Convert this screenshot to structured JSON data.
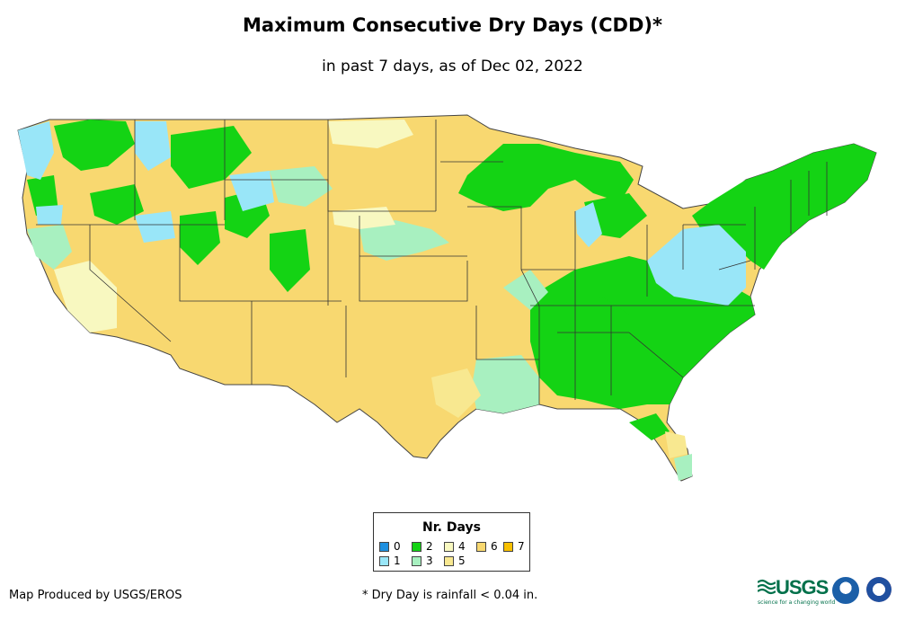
{
  "header": {
    "title": "Maximum Consecutive Dry Days (CDD)*",
    "subtitle": "in past 7 days, as of Dec 02, 2022"
  },
  "legend": {
    "title": "Nr. Days",
    "items": [
      {
        "label": "0",
        "color": "#1e90e0"
      },
      {
        "label": "1",
        "color": "#99e6f8"
      },
      {
        "label": "2",
        "color": "#14d314"
      },
      {
        "label": "3",
        "color": "#a8f0c0"
      },
      {
        "label": "4",
        "color": "#f8f8c0"
      },
      {
        "label": "5",
        "color": "#f8e890"
      },
      {
        "label": "6",
        "color": "#f8d870"
      },
      {
        "label": "7",
        "color": "#f8c000"
      }
    ]
  },
  "footer": {
    "credit": "Map Produced by USGS/EROS",
    "note": "* Dry Day is rainfall < 0.04 in.",
    "usgs_logo": "USGS",
    "usgs_tagline": "science for a changing world"
  },
  "logos": [
    "usgs-logo",
    "noaa-logo",
    "nws-logo"
  ]
}
